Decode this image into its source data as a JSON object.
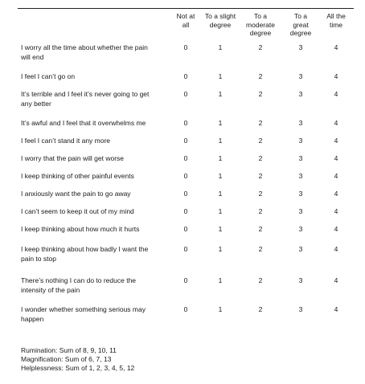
{
  "columns": [
    [
      "Not at",
      "all"
    ],
    [
      "To a slight",
      "degree"
    ],
    [
      "To a",
      "moderate",
      "degree"
    ],
    [
      "To a",
      "great",
      "degree"
    ],
    [
      "All the",
      "time"
    ]
  ],
  "items": [
    {
      "text": [
        "I worry all the time about whether the pain",
        "will end"
      ],
      "scores": [
        "0",
        "1",
        "2",
        "3",
        "4"
      ]
    },
    {
      "text": [
        "I feel I can’t go on"
      ],
      "scores": [
        "0",
        "1",
        "2",
        "3",
        "4"
      ]
    },
    {
      "text": [
        "It’s terrible and I feel it’s never going to get",
        "any better"
      ],
      "scores": [
        "0",
        "1",
        "2",
        "3",
        "4"
      ]
    },
    {
      "text": [
        "It’s awful and I feel that it overwhelms me"
      ],
      "scores": [
        "0",
        "1",
        "2",
        "3",
        "4"
      ]
    },
    {
      "text": [
        "I feel I can’t stand it any more"
      ],
      "scores": [
        "0",
        "1",
        "2",
        "3",
        "4"
      ]
    },
    {
      "text": [
        "I worry that the pain will get worse"
      ],
      "scores": [
        "0",
        "1",
        "2",
        "3",
        "4"
      ]
    },
    {
      "text": [
        "I keep thinking of other painful events"
      ],
      "scores": [
        "0",
        "1",
        "2",
        "3",
        "4"
      ]
    },
    {
      "text": [
        "I anxiously want the pain to go away"
      ],
      "scores": [
        "0",
        "1",
        "2",
        "3",
        "4"
      ]
    },
    {
      "text": [
        "I can’t seem to keep it out of my mind"
      ],
      "scores": [
        "0",
        "1",
        "2",
        "3",
        "4"
      ]
    },
    {
      "text": [
        "I keep thinking about how much it hurts"
      ],
      "scores": [
        "0",
        "1",
        "2",
        "3",
        "4"
      ]
    },
    {
      "text": [
        "I keep thinking about how badly I want the",
        "pain to stop"
      ],
      "scores": [
        "0",
        "1",
        "2",
        "3",
        "4"
      ]
    },
    {
      "text": [
        "There’s nothing I can do to reduce the",
        "intensity of the pain"
      ],
      "scores": [
        "0",
        "1",
        "2",
        "3",
        "4"
      ]
    },
    {
      "text": [
        "I wonder whether something serious may",
        "happen"
      ],
      "scores": [
        "0",
        "1",
        "2",
        "3",
        "4"
      ]
    }
  ],
  "footer": [
    "Rumination: Sum of 8, 9, 10, 11",
    "Magnification: Sum of 6, 7, 13",
    "Helplessness: Sum of 1, 2, 3, 4, 5, 12"
  ]
}
